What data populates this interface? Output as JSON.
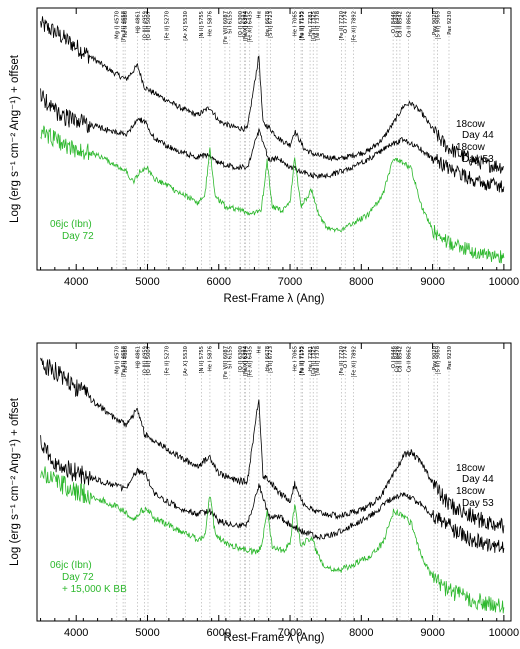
{
  "chart_data": [
    {
      "type": "line",
      "panel": "top",
      "xlabel": "Rest-Frame λ (Ang)",
      "ylabel": "Log (erg  s⁻¹ cm⁻² Ang⁻¹) + offset",
      "xlim": [
        3450,
        10100
      ],
      "xticks": [
        4000,
        5000,
        6000,
        7000,
        8000,
        9000,
        10000
      ],
      "line_ids": [
        {
          "w": 4570,
          "label": "Mg I] 4570"
        },
        {
          "w": 4658,
          "label": "[Fe III] 4658"
        },
        {
          "w": 4686,
          "label": "He II 4686"
        },
        {
          "w": 4861,
          "label": "Hβ 4861"
        },
        {
          "w": 4959,
          "label": "[O III] 4959"
        },
        {
          "w": 5007,
          "label": "[O III] 5007"
        },
        {
          "w": 5270,
          "label": "[Fe II] 5270"
        },
        {
          "w": 5530,
          "label": "[Ar X] 5530"
        },
        {
          "w": 5755,
          "label": "[N II] 5755"
        },
        {
          "w": 5876,
          "label": "He I 5876"
        },
        {
          "w": 6087,
          "label": "[Fe VII] 6087"
        },
        {
          "w": 6155,
          "label": "Si I 6155"
        },
        {
          "w": 6300,
          "label": "[O I] 6300"
        },
        {
          "w": 6364,
          "label": "[O I] 6364"
        },
        {
          "w": 6374,
          "label": "[Fe X] 6374"
        },
        {
          "w": 6435,
          "label": "[Fe XI] 6435"
        },
        {
          "w": 6563,
          "label": "Hα"
        },
        {
          "w": 6678,
          "label": "He I 6678"
        },
        {
          "w": 6723,
          "label": "[S II] 6723"
        },
        {
          "w": 7065,
          "label": "He I 7065"
        },
        {
          "w": 7155,
          "label": "[Fe II] 7155"
        },
        {
          "w": 7172,
          "label": "[Fe II] 7172"
        },
        {
          "w": 7281,
          "label": "He I 7281"
        },
        {
          "w": 7325,
          "label": "[Ca II] 7325"
        },
        {
          "w": 7378,
          "label": "[Ni II] 7378"
        },
        {
          "w": 7720,
          "label": "[Fe II] 7720"
        },
        {
          "w": 7774,
          "label": "O I 7774"
        },
        {
          "w": 7892,
          "label": "[Fe XI] 7892"
        },
        {
          "w": 8446,
          "label": "O I 8446"
        },
        {
          "w": 8498,
          "label": "Ca II 8498"
        },
        {
          "w": 8542,
          "label": "Ca II 8542"
        },
        {
          "w": 8662,
          "label": "Ca II 8662"
        },
        {
          "w": 9020,
          "label": "Paγ 9020"
        },
        {
          "w": 9069,
          "label": "[S III] 9069"
        },
        {
          "w": 9230,
          "label": "Paε 9230"
        }
      ],
      "series": [
        {
          "name": "18cow Day 44",
          "color": "#000000",
          "x": [
            3500,
            3700,
            3900,
            4100,
            4300,
            4500,
            4700,
            4860,
            4960,
            5100,
            5300,
            5500,
            5700,
            5876,
            6000,
            6200,
            6400,
            6563,
            6620,
            6700,
            6850,
            7000,
            7065,
            7200,
            7350,
            7500,
            7700,
            7900,
            8100,
            8300,
            8450,
            8600,
            8700,
            8850,
            9000,
            9100,
            9200,
            9400,
            9600,
            9800,
            10000
          ],
          "y": [
            9.6,
            9.4,
            9.15,
            8.9,
            8.65,
            8.4,
            8.2,
            8.55,
            8.0,
            7.85,
            7.65,
            7.45,
            7.3,
            7.5,
            7.15,
            7.0,
            6.95,
            8.8,
            7.1,
            7.0,
            6.7,
            6.55,
            6.9,
            6.45,
            6.3,
            6.25,
            6.2,
            6.3,
            6.4,
            6.7,
            7.1,
            7.55,
            7.6,
            7.35,
            6.95,
            6.7,
            6.5,
            6.3,
            6.15,
            6.05,
            6.0
          ]
        },
        {
          "name": "18cow Day 53",
          "color": "#000000",
          "x": [
            3500,
            3700,
            3900,
            4100,
            4300,
            4500,
            4700,
            4860,
            4960,
            5100,
            5300,
            5500,
            5700,
            5876,
            6000,
            6200,
            6400,
            6563,
            6700,
            6850,
            7000,
            7200,
            7400,
            7600,
            7800,
            8000,
            8200,
            8400,
            8600,
            8800,
            9000,
            9200,
            9400,
            9600,
            9800,
            10000
          ],
          "y": [
            7.8,
            7.4,
            7.2,
            7.1,
            7.0,
            6.9,
            6.8,
            7.2,
            7.15,
            6.7,
            6.5,
            6.35,
            6.25,
            6.3,
            6.1,
            6.0,
            6.0,
            6.9,
            6.2,
            6.2,
            6.0,
            5.85,
            5.75,
            5.8,
            5.95,
            6.1,
            6.3,
            6.55,
            6.7,
            6.5,
            6.2,
            6.0,
            5.8,
            5.65,
            5.55,
            5.5
          ]
        },
        {
          "name": "06jc (Ibn) Day 72",
          "color": "#2db82d",
          "x": [
            3500,
            3700,
            3900,
            4100,
            4300,
            4500,
            4700,
            4800,
            4900,
            5000,
            5100,
            5300,
            5500,
            5700,
            5800,
            5876,
            5950,
            6100,
            6300,
            6500,
            6600,
            6678,
            6750,
            6900,
            7000,
            7065,
            7150,
            7300,
            7400,
            7500,
            7700,
            7900,
            8100,
            8300,
            8450,
            8550,
            8700,
            8850,
            9000,
            9200,
            9400,
            9600,
            9800,
            10000
          ],
          "y": [
            6.9,
            6.7,
            6.5,
            6.4,
            6.3,
            6.1,
            5.9,
            5.6,
            5.9,
            5.95,
            5.7,
            5.5,
            5.3,
            5.1,
            5.2,
            6.45,
            5.25,
            5.0,
            4.9,
            4.8,
            4.95,
            6.15,
            5.0,
            4.9,
            5.1,
            6.25,
            5.0,
            5.4,
            4.8,
            4.5,
            4.4,
            4.6,
            4.8,
            5.3,
            6.2,
            6.15,
            5.95,
            5.0,
            4.4,
            4.1,
            3.95,
            3.85,
            3.75,
            3.7
          ]
        }
      ],
      "annotations": [
        {
          "text": "18cow",
          "color": "#000000"
        },
        {
          "text": "Day 44",
          "color": "#000000"
        },
        {
          "text": "18cow",
          "color": "#000000"
        },
        {
          "text": "Day 53",
          "color": "#000000"
        },
        {
          "text": "06jc (Ibn)",
          "color": "#2db82d"
        },
        {
          "text": "Day 72",
          "color": "#2db82d"
        }
      ]
    },
    {
      "type": "line",
      "panel": "bottom",
      "xlabel": "Rest-Frame λ (Ang)",
      "ylabel": "Log (erg  s⁻¹ cm⁻² Ang⁻¹) + offset",
      "xlim": [
        3450,
        10100
      ],
      "xticks": [
        4000,
        5000,
        6000,
        7000,
        8000,
        9000,
        10000
      ],
      "series": [
        {
          "name": "18cow Day 44",
          "color": "#000000",
          "x": [
            3500,
            3700,
            3900,
            4100,
            4300,
            4500,
            4700,
            4860,
            4960,
            5100,
            5300,
            5500,
            5700,
            5876,
            6000,
            6200,
            6400,
            6563,
            6620,
            6700,
            6850,
            7000,
            7065,
            7200,
            7350,
            7500,
            7700,
            7900,
            8100,
            8300,
            8450,
            8600,
            8700,
            8850,
            9000,
            9100,
            9200,
            9400,
            9600,
            9800,
            10000
          ],
          "y": [
            9.6,
            9.4,
            9.15,
            8.9,
            8.65,
            8.4,
            8.2,
            8.55,
            8.0,
            7.85,
            7.65,
            7.45,
            7.3,
            7.5,
            7.15,
            7.0,
            6.95,
            8.8,
            7.1,
            7.0,
            6.7,
            6.55,
            6.9,
            6.45,
            6.3,
            6.25,
            6.2,
            6.3,
            6.4,
            6.7,
            7.1,
            7.55,
            7.6,
            7.35,
            6.95,
            6.7,
            6.5,
            6.3,
            6.15,
            6.05,
            6.0
          ]
        },
        {
          "name": "18cow Day 53",
          "color": "#000000",
          "x": [
            3500,
            3700,
            3900,
            4100,
            4300,
            4500,
            4700,
            4860,
            4960,
            5100,
            5300,
            5500,
            5700,
            5876,
            6000,
            6200,
            6400,
            6563,
            6700,
            6850,
            7000,
            7200,
            7400,
            7600,
            7800,
            8000,
            8200,
            8400,
            8600,
            8800,
            9000,
            9200,
            9400,
            9600,
            9800,
            10000
          ],
          "y": [
            7.8,
            7.4,
            7.2,
            7.1,
            7.0,
            6.9,
            6.8,
            7.2,
            7.15,
            6.7,
            6.5,
            6.35,
            6.25,
            6.3,
            6.1,
            6.0,
            6.0,
            6.9,
            6.2,
            6.2,
            6.0,
            5.85,
            5.75,
            5.8,
            5.95,
            6.1,
            6.3,
            6.55,
            6.7,
            6.5,
            6.2,
            6.0,
            5.8,
            5.65,
            5.55,
            5.5
          ]
        },
        {
          "name": "06jc (Ibn) Day 72 + 15,000 K BB",
          "color": "#2db82d",
          "x": [
            3500,
            3700,
            3900,
            4100,
            4300,
            4500,
            4700,
            4800,
            4900,
            5000,
            5100,
            5300,
            5500,
            5700,
            5800,
            5876,
            5950,
            6100,
            6300,
            6500,
            6600,
            6678,
            6750,
            6900,
            7000,
            7065,
            7150,
            7300,
            7400,
            7500,
            7700,
            7900,
            8100,
            8300,
            8450,
            8550,
            8700,
            8850,
            9000,
            9200,
            9400,
            9600,
            9800,
            10000
          ],
          "y": [
            7.2,
            7.0,
            6.8,
            6.7,
            6.6,
            6.45,
            6.3,
            6.1,
            6.3,
            6.35,
            6.15,
            6.0,
            5.85,
            5.7,
            5.75,
            6.65,
            5.8,
            5.6,
            5.5,
            5.4,
            5.5,
            6.35,
            5.55,
            5.45,
            5.6,
            6.45,
            5.55,
            5.75,
            5.3,
            5.1,
            5.0,
            5.15,
            5.3,
            5.6,
            6.3,
            6.25,
            6.05,
            5.3,
            4.85,
            4.6,
            4.45,
            4.35,
            4.25,
            4.2
          ]
        }
      ],
      "annotations": [
        {
          "text": "18cow",
          "color": "#000000"
        },
        {
          "text": "Day 44",
          "color": "#000000"
        },
        {
          "text": "18cow",
          "color": "#000000"
        },
        {
          "text": "Day 53",
          "color": "#000000"
        },
        {
          "text": "06jc (Ibn)",
          "color": "#2db82d"
        },
        {
          "text": "Day 72",
          "color": "#2db82d"
        },
        {
          "text": "+ 15,000 K BB",
          "color": "#2db82d"
        }
      ]
    }
  ]
}
